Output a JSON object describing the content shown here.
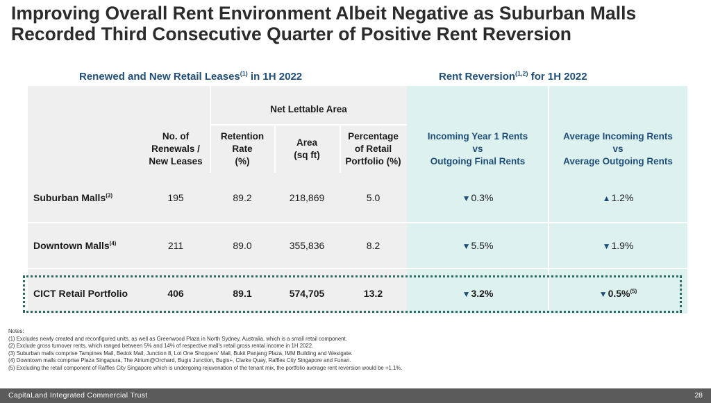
{
  "title": "Improving Overall Rent Environment Albeit Negative as Suburban Malls Recorded Third Consecutive Quarter of Positive Rent Reversion",
  "left_section": {
    "text": "Renewed and New Retail Leases",
    "sup": "(1)",
    "suffix": " in 1H 2022"
  },
  "right_section": {
    "text": "Rent Reversion",
    "sup": "(1,2)",
    "suffix": " for 1H 2022"
  },
  "table": {
    "group_header": "Net Lettable Area",
    "columns": {
      "renewals": [
        "No. of",
        "Renewals /",
        "New Leases"
      ],
      "retention": [
        "Retention",
        "Rate",
        "(%)"
      ],
      "area": [
        "Area",
        "(sq ft)"
      ],
      "percentage": [
        "Percentage",
        "of Retail",
        "Portfolio (%)"
      ],
      "incoming_year1": [
        "Incoming Year 1 Rents",
        "vs",
        "Outgoing Final Rents"
      ],
      "average_incoming": [
        "Average Incoming Rents",
        "vs",
        "Average Outgoing Rents"
      ]
    },
    "rows": [
      {
        "label": "Suburban Malls",
        "sup": "(3)",
        "renewals": "195",
        "retention": "89.2",
        "area": "218,869",
        "percentage": "5.0",
        "incoming_arrow": "▼",
        "incoming": "0.3%",
        "average_arrow": "▲",
        "average": "1.2%",
        "average_sup": ""
      },
      {
        "label": "Downtown Malls",
        "sup": "(4)",
        "renewals": "211",
        "retention": "89.0",
        "area": "355,836",
        "percentage": "8.2",
        "incoming_arrow": "▼",
        "incoming": "5.5%",
        "average_arrow": "▼",
        "average": "1.9%",
        "average_sup": ""
      },
      {
        "label": "CICT Retail Portfolio",
        "sup": "",
        "renewals": "406",
        "retention": "89.1",
        "area": "574,705",
        "percentage": "13.2",
        "incoming_arrow": "▼",
        "incoming": "3.2%",
        "average_arrow": "▼",
        "average": "0.5%",
        "average_sup": "(5)"
      }
    ]
  },
  "notes": {
    "heading": "Notes:",
    "items": [
      "(1)   Excludes newly created and reconfigured units, as well as Greenwood Plaza in North Sydney, Australia, which is a small retail component.",
      "(2)   Exclude gross turnover rents, which ranged between 5% and 14% of respective mall's retail gross rental income in 1H 2022.",
      "(3)   Suburban malls comprise Tampines Mall, Bedok Mall, Junction 8, Lot One Shoppers' Mall, Bukit Panjang Plaza, IMM Building and Westgate.",
      "(4)   Downtown malls comprise Plaza Singapura, The Atrium@Orchard, Bugis Junction, Bugis+, Clarke Quay, Raffles City Singapore and Funan.",
      "(5)   Excluding the retail component of Raffles City Singapore which is undergoing rejuvenation of the tenant mix, the portfolio average rent reversion would be +1.1%."
    ]
  },
  "footer": {
    "company": "CapitaLand Integrated Commercial Trust",
    "page": "28"
  },
  "colors": {
    "title": "#2b2b2b",
    "section_blue": "#1f4e79",
    "teal_panel": "#ddf1ef",
    "grey_panel": "#efefef",
    "accent_green": "#2c6b62",
    "footer_bg": "#5b5b5b"
  }
}
